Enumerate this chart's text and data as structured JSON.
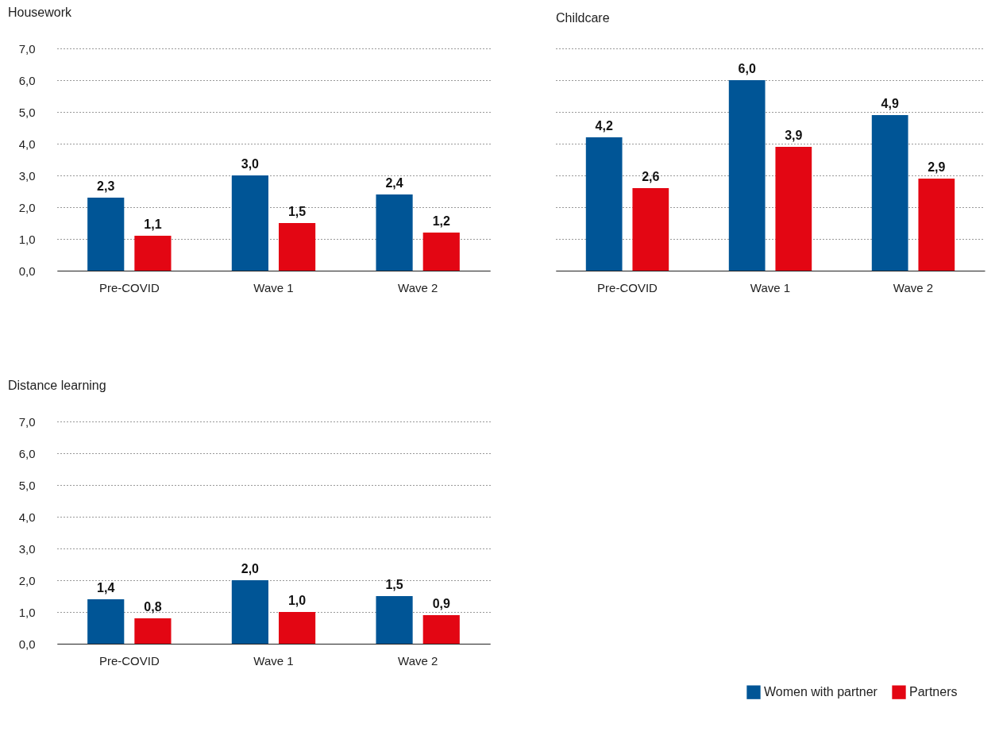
{
  "chart_data": [
    {
      "type": "bar",
      "title": "Housework",
      "categories": [
        "Pre-COVID",
        "Wave 1",
        "Wave 2"
      ],
      "series": [
        {
          "color": "#005596",
          "values": [
            2.3,
            3.0,
            2.4
          ],
          "value_labels": [
            "2,3",
            "3,0",
            "2,4"
          ]
        },
        {
          "color": "#e30613",
          "values": [
            1.1,
            1.5,
            1.2
          ],
          "value_labels": [
            "1,1",
            "1,5",
            "1,2"
          ]
        }
      ],
      "ylim": [
        0,
        7
      ],
      "yticks": [
        {
          "value": 0,
          "label": "0,0"
        },
        {
          "value": 1,
          "label": "1,0"
        },
        {
          "value": 2,
          "label": "2,0"
        },
        {
          "value": 3,
          "label": "3,0"
        },
        {
          "value": 4,
          "label": "4,0"
        },
        {
          "value": 5,
          "label": "5,0"
        },
        {
          "value": 6,
          "label": "6,0"
        },
        {
          "value": 7,
          "label": "7,0"
        }
      ],
      "grid": "y"
    },
    {
      "type": "bar",
      "title": "Childcare",
      "categories": [
        "Pre-COVID",
        "Wave 1",
        "Wave 2"
      ],
      "series": [
        {
          "color": "#005596",
          "values": [
            4.2,
            6.0,
            4.9
          ],
          "value_labels": [
            "4,2",
            "6,0",
            "4,9"
          ]
        },
        {
          "color": "#e30613",
          "values": [
            2.6,
            3.9,
            2.9
          ],
          "value_labels": [
            "2,6",
            "3,9",
            "2,9"
          ]
        }
      ],
      "ylim": [
        0,
        7
      ],
      "yticks": [
        0,
        1,
        2,
        3,
        4,
        5,
        6,
        7
      ],
      "grid": "y",
      "tick_labels": "x"
    },
    {
      "type": "bar",
      "title": "Distance learning",
      "categories": [
        "Pre-COVID",
        "Wave 1",
        "Wave 2"
      ],
      "series": [
        {
          "name": "Women with partner",
          "color": "#005596",
          "values": [
            1.4,
            2.0,
            1.5
          ],
          "value_labels": [
            "1,4",
            "2,0",
            "1,5"
          ]
        },
        {
          "name": "Partners",
          "color": "#e30613",
          "values": [
            0.8,
            1.0,
            0.9
          ],
          "value_labels": [
            "0,8",
            "1,0",
            "0,9"
          ]
        }
      ],
      "ylim": [
        0,
        7
      ],
      "yticks": [
        {
          "value": 0,
          "label": "0,0"
        },
        {
          "value": 1,
          "label": "1,0"
        },
        {
          "value": 2,
          "label": "2,0"
        },
        {
          "value": 3,
          "label": "3,0"
        },
        {
          "value": 4,
          "label": "4,0"
        },
        {
          "value": 5,
          "label": "5,0"
        },
        {
          "value": 6,
          "label": "6,0"
        },
        {
          "value": 7,
          "label": "7,0"
        }
      ],
      "grid": "y",
      "legend": "bottom right"
    }
  ]
}
